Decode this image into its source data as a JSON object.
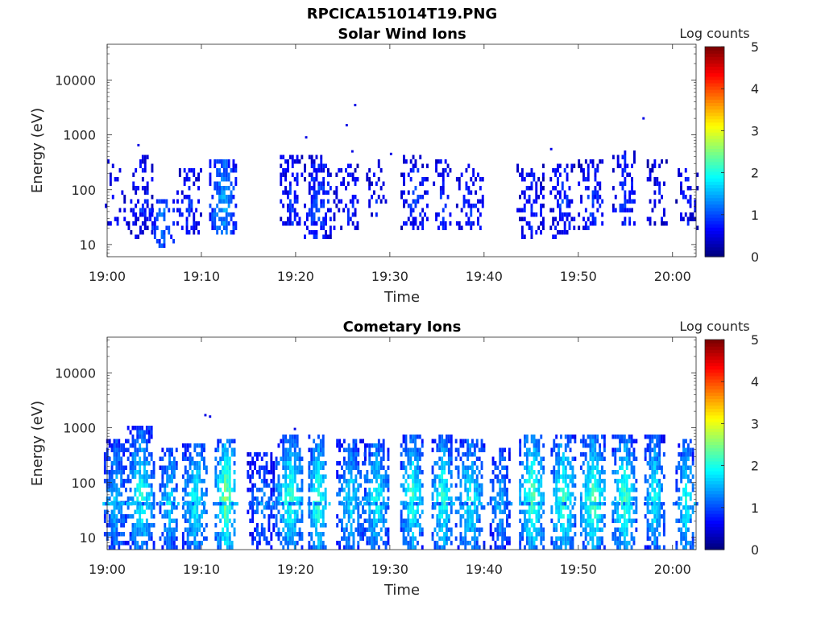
{
  "figure_title": "RPCICA151014T19.PNG",
  "colors": {
    "colormap": "jet",
    "axis": "#262626",
    "background": "#ffffff"
  },
  "chart_data": [
    {
      "type": "heatmap",
      "title": "Solar Wind Ions",
      "xlabel": "Time",
      "ylabel": "Energy (eV)",
      "y_scale": "log",
      "y_ticks": [
        10,
        100,
        1000,
        10000
      ],
      "y_tick_labels": [
        "10",
        "100",
        "1000",
        "10000"
      ],
      "ylim": [
        6,
        45000
      ],
      "x_tick_labels": [
        "19:00",
        "19:10",
        "19:20",
        "19:30",
        "19:40",
        "19:50",
        "20:00"
      ],
      "xlim_minutes": [
        0,
        62.5
      ],
      "colorbar": {
        "label": "Log counts",
        "range": [
          0,
          5
        ],
        "ticks": [
          "0",
          "1",
          "2",
          "3",
          "4",
          "5"
        ]
      },
      "data_description": "Sparse, low-count scatter; most signal between 10 and 300 eV",
      "bursts": [
        {
          "t": 0.8,
          "e_min": 30,
          "e_max": 300,
          "level": 0.7,
          "density": 0.25
        },
        {
          "t": 3.5,
          "e_min": 15,
          "e_max": 400,
          "level": 0.8,
          "density": 0.5
        },
        {
          "t": 5.8,
          "e_min": 10,
          "e_max": 60,
          "level": 1.2,
          "density": 0.55
        },
        {
          "t": 8.6,
          "e_min": 20,
          "e_max": 200,
          "level": 0.9,
          "density": 0.45
        },
        {
          "t": 12.2,
          "e_min": 18,
          "e_max": 300,
          "level": 1.5,
          "density": 0.75
        },
        {
          "t": 19.5,
          "e_min": 30,
          "e_max": 400,
          "level": 0.9,
          "density": 0.55
        },
        {
          "t": 22.3,
          "e_min": 15,
          "e_max": 350,
          "level": 1.0,
          "density": 0.6
        },
        {
          "t": 25.4,
          "e_min": 25,
          "e_max": 250,
          "level": 0.8,
          "density": 0.4
        },
        {
          "t": 28.5,
          "e_min": 40,
          "e_max": 300,
          "level": 0.7,
          "density": 0.3
        },
        {
          "t": 32.5,
          "e_min": 25,
          "e_max": 400,
          "level": 0.9,
          "density": 0.45
        },
        {
          "t": 35.5,
          "e_min": 25,
          "e_max": 300,
          "level": 0.8,
          "density": 0.45
        },
        {
          "t": 38.5,
          "e_min": 25,
          "e_max": 250,
          "level": 0.8,
          "density": 0.45
        },
        {
          "t": 44.9,
          "e_min": 15,
          "e_max": 250,
          "level": 0.8,
          "density": 0.45
        },
        {
          "t": 48.3,
          "e_min": 15,
          "e_max": 250,
          "level": 0.9,
          "density": 0.5
        },
        {
          "t": 51.3,
          "e_min": 25,
          "e_max": 300,
          "level": 0.9,
          "density": 0.5
        },
        {
          "t": 54.8,
          "e_min": 30,
          "e_max": 450,
          "level": 0.9,
          "density": 0.45
        },
        {
          "t": 58.3,
          "e_min": 30,
          "e_max": 300,
          "level": 0.7,
          "density": 0.3
        },
        {
          "t": 61.5,
          "e_min": 25,
          "e_max": 200,
          "level": 0.7,
          "density": 0.3
        }
      ],
      "isolated_points": [
        {
          "t": 3.2,
          "e": 650
        },
        {
          "t": 21.0,
          "e": 900
        },
        {
          "t": 25.3,
          "e": 1500
        },
        {
          "t": 26.2,
          "e": 3500
        },
        {
          "t": 47.0,
          "e": 550
        },
        {
          "t": 56.8,
          "e": 2000
        },
        {
          "t": 30.0,
          "e": 450
        },
        {
          "t": 25.9,
          "e": 500
        }
      ]
    },
    {
      "type": "heatmap",
      "title": "Cometary Ions",
      "xlabel": "Time",
      "ylabel": "Energy (eV)",
      "y_scale": "log",
      "y_ticks": [
        10,
        100,
        1000,
        10000
      ],
      "y_tick_labels": [
        "10",
        "100",
        "1000",
        "10000"
      ],
      "ylim": [
        6,
        45000
      ],
      "x_tick_labels": [
        "19:00",
        "19:10",
        "19:20",
        "19:30",
        "19:40",
        "19:50",
        "20:00"
      ],
      "xlim_minutes": [
        0,
        62.5
      ],
      "colorbar": {
        "label": "Log counts",
        "range": [
          0,
          5
        ],
        "ticks": [
          "0",
          "1",
          "2",
          "3",
          "4",
          "5"
        ]
      },
      "data_description": "Quasi-periodic bursts roughly every 3 minutes spanning ~6 to ~600 eV",
      "bursts": [
        {
          "t": 0.8,
          "e_min": 6,
          "e_max": 500,
          "level": 1.7,
          "density": 0.85
        },
        {
          "t": 3.5,
          "e_min": 6,
          "e_max": 900,
          "level": 2.1,
          "density": 0.85
        },
        {
          "t": 6.5,
          "e_min": 6,
          "e_max": 400,
          "level": 1.8,
          "density": 0.85
        },
        {
          "t": 9.3,
          "e_min": 8,
          "e_max": 450,
          "level": 2.0,
          "density": 0.85
        },
        {
          "t": 12.5,
          "e_min": 8,
          "e_max": 500,
          "level": 2.6,
          "density": 0.9
        },
        {
          "t": 16.3,
          "e_min": 6,
          "e_max": 300,
          "level": 1.3,
          "density": 0.6
        },
        {
          "t": 19.3,
          "e_min": 8,
          "e_max": 600,
          "level": 2.2,
          "density": 0.85
        },
        {
          "t": 22.3,
          "e_min": 6,
          "e_max": 600,
          "level": 2.3,
          "density": 0.9
        },
        {
          "t": 25.8,
          "e_min": 6,
          "e_max": 500,
          "level": 1.8,
          "density": 0.8
        },
        {
          "t": 28.5,
          "e_min": 8,
          "e_max": 500,
          "level": 2.0,
          "density": 0.8
        },
        {
          "t": 32.3,
          "e_min": 8,
          "e_max": 600,
          "level": 2.2,
          "density": 0.85
        },
        {
          "t": 35.5,
          "e_min": 6,
          "e_max": 600,
          "level": 2.2,
          "density": 0.85
        },
        {
          "t": 38.4,
          "e_min": 8,
          "e_max": 500,
          "level": 2.0,
          "density": 0.8
        },
        {
          "t": 41.6,
          "e_min": 6,
          "e_max": 400,
          "level": 1.6,
          "density": 0.75
        },
        {
          "t": 45.0,
          "e_min": 8,
          "e_max": 600,
          "level": 2.4,
          "density": 0.85
        },
        {
          "t": 48.3,
          "e_min": 6,
          "e_max": 600,
          "level": 2.3,
          "density": 0.85
        },
        {
          "t": 51.5,
          "e_min": 6,
          "e_max": 600,
          "level": 2.4,
          "density": 0.9
        },
        {
          "t": 54.8,
          "e_min": 6,
          "e_max": 600,
          "level": 2.3,
          "density": 0.85
        },
        {
          "t": 58.0,
          "e_min": 8,
          "e_max": 650,
          "level": 2.0,
          "density": 0.85
        },
        {
          "t": 61.3,
          "e_min": 6,
          "e_max": 500,
          "level": 2.0,
          "density": 0.8
        }
      ],
      "band_level": 1.3,
      "isolated_points": [
        {
          "t": 10.3,
          "e": 1700
        },
        {
          "t": 10.8,
          "e": 1600
        },
        {
          "t": 19.8,
          "e": 950
        }
      ]
    }
  ]
}
